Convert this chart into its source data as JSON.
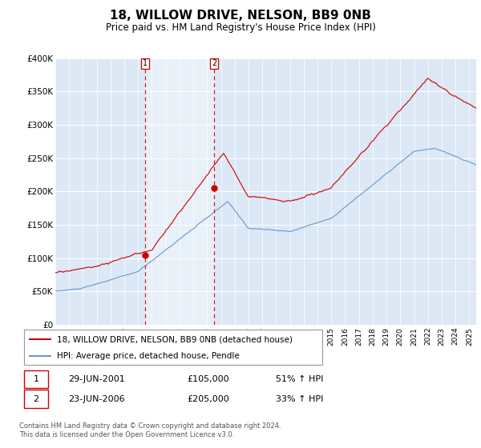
{
  "title": "18, WILLOW DRIVE, NELSON, BB9 0NB",
  "subtitle": "Price paid vs. HM Land Registry's House Price Index (HPI)",
  "red_label": "18, WILLOW DRIVE, NELSON, BB9 0NB (detached house)",
  "blue_label": "HPI: Average price, detached house, Pendle",
  "transaction1": {
    "label": "1",
    "date": "29-JUN-2001",
    "price": "£105,000",
    "hpi": "51% ↑ HPI"
  },
  "transaction2": {
    "label": "2",
    "date": "23-JUN-2006",
    "price": "£205,000",
    "hpi": "33% ↑ HPI"
  },
  "footer": "Contains HM Land Registry data © Crown copyright and database right 2024.\nThis data is licensed under the Open Government Licence v3.0.",
  "ylim": [
    0,
    400000
  ],
  "yticks": [
    0,
    50000,
    100000,
    150000,
    200000,
    250000,
    300000,
    350000,
    400000
  ],
  "ytick_labels": [
    "£0",
    "£50K",
    "£100K",
    "£150K",
    "£200K",
    "£250K",
    "£300K",
    "£350K",
    "£400K"
  ],
  "red_color": "#cc0000",
  "blue_color": "#6699cc",
  "shade_color": "#dde8f5",
  "vline1_x": 2001.5,
  "vline2_x": 2006.5,
  "dot1_x": 2001.5,
  "dot1_y": 105000,
  "dot2_x": 2006.5,
  "dot2_y": 205000,
  "background_color": "#dce8f5",
  "xlim_start": 1995,
  "xlim_end": 2025.5
}
